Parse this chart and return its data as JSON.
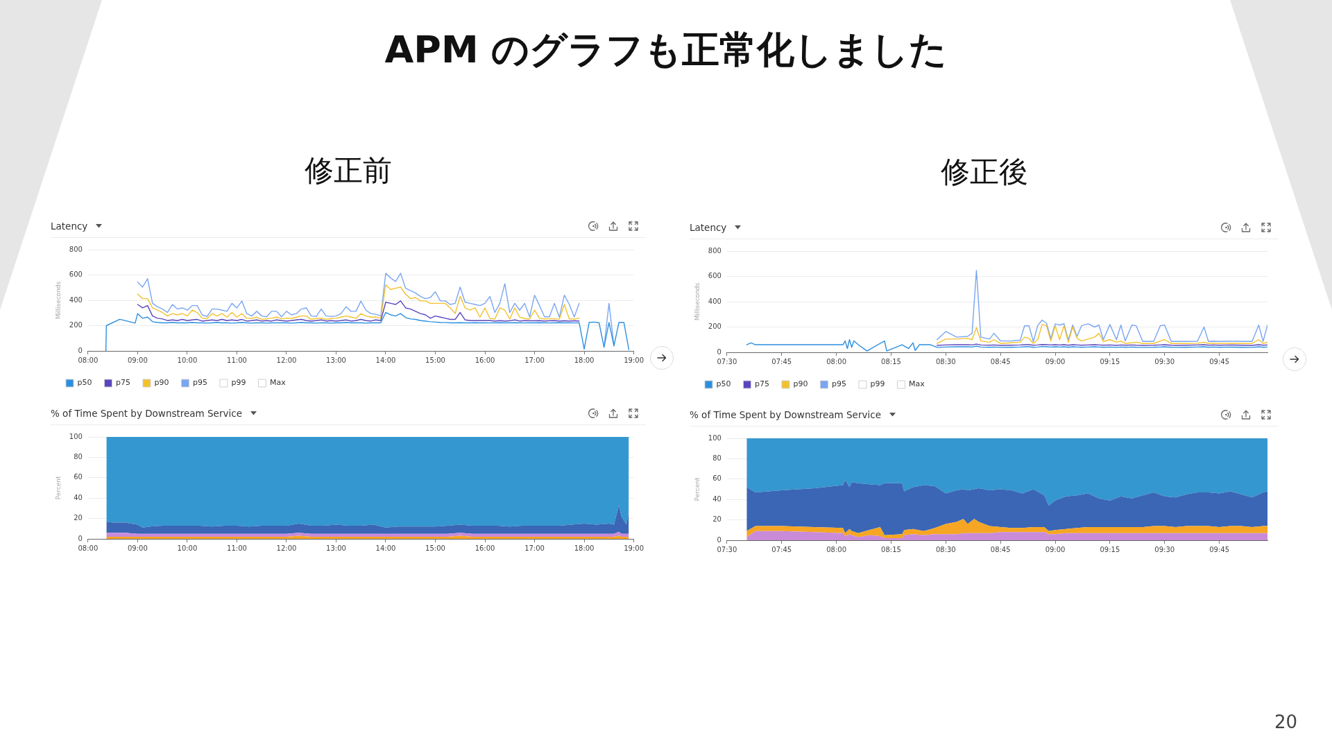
{
  "chart_data": [
    {
      "type": "line",
      "title": "Latency",
      "subtitle": "修正前",
      "ylabel": "Milliseconds",
      "annotations": [
        "APM のグラフも正常化しました"
      ],
      "x": [
        8.36,
        8.37,
        8.64,
        8.95,
        9,
        9.1,
        9.2,
        9.3,
        9.4,
        9.5,
        9.6,
        9.7,
        9.8,
        9.9,
        10,
        10.1,
        10.2,
        10.3,
        10.4,
        10.5,
        10.6,
        10.7,
        10.8,
        10.9,
        11,
        11.1,
        11.2,
        11.3,
        11.4,
        11.5,
        11.6,
        11.7,
        11.8,
        11.9,
        12,
        12.1,
        12.2,
        12.3,
        12.4,
        12.5,
        12.6,
        12.7,
        12.8,
        12.9,
        13,
        13.1,
        13.2,
        13.3,
        13.4,
        13.5,
        13.6,
        13.7,
        13.8,
        13.9,
        14,
        14.1,
        14.2,
        14.3,
        14.4,
        14.5,
        14.6,
        14.7,
        14.8,
        14.9,
        15,
        15.1,
        15.2,
        15.3,
        15.4,
        15.5,
        15.6,
        15.7,
        15.8,
        15.9,
        16,
        16.1,
        16.2,
        16.3,
        16.4,
        16.5,
        16.6,
        16.7,
        16.8,
        16.9,
        17,
        17.1,
        17.2,
        17.3,
        17.4,
        17.5,
        17.6,
        17.7,
        17.8,
        17.9,
        18,
        18.1,
        18.2,
        18.3,
        18.4,
        18.5,
        18.6,
        18.7,
        18.8,
        18.9
      ],
      "series": [
        {
          "name": "p50",
          "color": "#2b8fe0",
          "values": [
            0,
            200,
            250,
            220,
            295,
            258,
            267,
            231,
            225,
            222,
            222,
            225,
            222,
            222,
            222,
            225,
            222,
            222,
            220,
            222,
            225,
            222,
            222,
            220,
            222,
            225,
            222,
            220,
            222,
            222,
            220,
            222,
            222,
            222,
            222,
            220,
            222,
            225,
            222,
            222,
            220,
            222,
            222,
            220,
            222,
            222,
            225,
            222,
            222,
            222,
            220,
            222,
            222,
            222,
            304,
            285,
            276,
            295,
            264,
            253,
            249,
            240,
            236,
            231,
            228,
            225,
            224,
            222,
            222,
            223,
            222,
            222,
            223,
            222,
            222,
            221,
            222,
            223,
            222,
            222,
            223,
            222,
            221,
            222,
            222,
            223,
            222,
            221,
            222,
            223,
            222,
            222,
            221,
            222,
            15,
            225,
            228,
            222,
            30,
            225,
            40,
            225,
            225,
            10
          ]
        },
        {
          "name": "p75",
          "color": "#5b45bd",
          "values": [
            null,
            null,
            null,
            null,
            367,
            340,
            358,
            276,
            258,
            253,
            240,
            245,
            240,
            249,
            240,
            245,
            249,
            236,
            240,
            245,
            240,
            249,
            240,
            245,
            240,
            249,
            236,
            240,
            245,
            236,
            240,
            236,
            245,
            240,
            236,
            240,
            245,
            249,
            240,
            236,
            240,
            245,
            236,
            240,
            236,
            240,
            245,
            236,
            240,
            249,
            240,
            236,
            245,
            240,
            385,
            376,
            367,
            395,
            340,
            331,
            313,
            295,
            285,
            258,
            276,
            267,
            258,
            249,
            249,
            304,
            245,
            240,
            240,
            240,
            240,
            240,
            236,
            240,
            236,
            238,
            245,
            236,
            240,
            238,
            238,
            240,
            236,
            238,
            240,
            236,
            238,
            236,
            238,
            236,
            null,
            null,
            null,
            null,
            null,
            null,
            null,
            null,
            null,
            null
          ]
        },
        {
          "name": "p90",
          "color": "#f2c12e",
          "values": [
            null,
            null,
            null,
            null,
            449,
            413,
            413,
            340,
            322,
            304,
            276,
            295,
            285,
            295,
            276,
            322,
            304,
            258,
            255,
            295,
            276,
            295,
            267,
            304,
            267,
            295,
            258,
            256,
            267,
            249,
            254,
            258,
            267,
            254,
            258,
            256,
            267,
            276,
            276,
            249,
            256,
            258,
            249,
            256,
            258,
            267,
            276,
            267,
            258,
            295,
            276,
            267,
            267,
            258,
            522,
            485,
            495,
            504,
            449,
            413,
            422,
            395,
            395,
            376,
            376,
            376,
            376,
            340,
            295,
            431,
            340,
            322,
            340,
            267,
            340,
            256,
            252,
            340,
            322,
            252,
            340,
            267,
            256,
            252,
            322,
            258,
            252,
            254,
            254,
            250,
            367,
            252,
            252,
            258,
            null,
            null,
            null,
            null,
            null,
            null,
            null,
            null,
            null,
            null
          ]
        },
        {
          "name": "p95",
          "color": "#79a5f1",
          "values": [
            null,
            null,
            null,
            null,
            544,
            504,
            571,
            376,
            349,
            331,
            304,
            367,
            331,
            340,
            322,
            358,
            358,
            285,
            272,
            331,
            331,
            322,
            313,
            376,
            340,
            394,
            295,
            276,
            313,
            276,
            270,
            313,
            313,
            270,
            313,
            285,
            295,
            331,
            340,
            276,
            272,
            331,
            276,
            272,
            276,
            295,
            349,
            313,
            313,
            394,
            322,
            295,
            290,
            276,
            613,
            576,
            549,
            613,
            495,
            476,
            458,
            431,
            413,
            422,
            467,
            395,
            395,
            367,
            376,
            504,
            385,
            376,
            367,
            358,
            376,
            431,
            304,
            376,
            531,
            304,
            376,
            322,
            376,
            268,
            440,
            358,
            270,
            270,
            376,
            266,
            440,
            367,
            268,
            376,
            null,
            null,
            null,
            null,
            30,
            376,
            40,
            null,
            null,
            null
          ]
        },
        {
          "name": "p99",
          "color": "#ffffff",
          "values": [
            null,
            null,
            null,
            null,
            null,
            null,
            null,
            null,
            null,
            null,
            null,
            null,
            null,
            null,
            null,
            null,
            null,
            null,
            null,
            null,
            null,
            null,
            null,
            null,
            null,
            null,
            null,
            null,
            null,
            null,
            null,
            null,
            null,
            null,
            null,
            null,
            null,
            null,
            null,
            null,
            null,
            null,
            null,
            null,
            null,
            null,
            null,
            null,
            null,
            null,
            null,
            null,
            null,
            null,
            null,
            null,
            null,
            null,
            null,
            null,
            null,
            null,
            null,
            null,
            null,
            null,
            null,
            null,
            null,
            null,
            null,
            null,
            null,
            null,
            null,
            null,
            null,
            null,
            null,
            null,
            null,
            null,
            null,
            null,
            null,
            null,
            null,
            null,
            null,
            null,
            null,
            null,
            null,
            null,
            null,
            null,
            null,
            null,
            null,
            null,
            null,
            null,
            null,
            null
          ]
        },
        {
          "name": "Max",
          "color": "#ffffff",
          "values": [
            null,
            null,
            null,
            null,
            null,
            null,
            null,
            null,
            null,
            null,
            null,
            null,
            null,
            null,
            null,
            null,
            null,
            null,
            null,
            null,
            null,
            null,
            null,
            null,
            null,
            null,
            null,
            null,
            null,
            null,
            null,
            null,
            null,
            null,
            null,
            null,
            null,
            null,
            null,
            null,
            null,
            null,
            null,
            null,
            null,
            null,
            null,
            null,
            null,
            null,
            null,
            null,
            null,
            null,
            null,
            null,
            null,
            null,
            null,
            null,
            null,
            null,
            null,
            null,
            null,
            null,
            null,
            null,
            null,
            null,
            null,
            null,
            null,
            null,
            null,
            null,
            null,
            null,
            null,
            null,
            null,
            null,
            null,
            null,
            null,
            null,
            null,
            null,
            null,
            null,
            null,
            null,
            null,
            null,
            null,
            null,
            null,
            null,
            null,
            null,
            null,
            null,
            null,
            null
          ]
        }
      ],
      "xlim": [
        8,
        19
      ],
      "xticks": [
        {
          "value": 8,
          "label": "08:00"
        },
        {
          "value": 9,
          "label": "09:00"
        },
        {
          "value": 10,
          "label": "10:00"
        },
        {
          "value": 11,
          "label": "11:00"
        },
        {
          "value": 12,
          "label": "12:00"
        },
        {
          "value": 13,
          "label": "13:00"
        },
        {
          "value": 14,
          "label": "14:00"
        },
        {
          "value": 15,
          "label": "15:00"
        },
        {
          "value": 16,
          "label": "16:00"
        },
        {
          "value": 17,
          "label": "17:00"
        },
        {
          "value": 18,
          "label": "18:00"
        },
        {
          "value": 19,
          "label": "19:00"
        }
      ],
      "ylim": [
        0,
        800
      ],
      "yticks": [
        0,
        200,
        400,
        600,
        800
      ],
      "grid": "y",
      "legend": "bottom left"
    },
    {
      "type": "line",
      "title": "Latency",
      "subtitle": "修正後",
      "ylabel": "Milliseconds",
      "x": [
        7.59,
        7.61,
        7.63,
        8.03,
        8.04,
        8.05,
        8.06,
        8.07,
        8.08,
        8.1,
        8.14,
        8.22,
        8.23,
        8.3,
        8.33,
        8.35,
        8.36,
        8.38,
        8.41,
        8.43,
        8.46,
        8.5,
        8.55,
        8.6,
        8.62,
        8.64,
        8.66,
        8.7,
        8.72,
        8.75,
        8.8,
        8.84,
        8.86,
        8.88,
        8.9,
        8.92,
        8.94,
        8.96,
        8.98,
        9,
        9.02,
        9.04,
        9.06,
        9.08,
        9.1,
        9.12,
        9.15,
        9.18,
        9.2,
        9.22,
        9.25,
        9.28,
        9.3,
        9.32,
        9.35,
        9.37,
        9.4,
        9.45,
        9.48,
        9.5,
        9.53,
        9.55,
        9.6,
        9.65,
        9.68,
        9.7,
        9.72,
        9.75,
        9.8,
        9.85,
        9.9,
        9.93,
        9.95,
        9.97
      ],
      "series": [
        {
          "name": "p50",
          "color": "#2b8fe0",
          "values": [
            60,
            75,
            60,
            60,
            90,
            30,
            100,
            40,
            90,
            60,
            10,
            90,
            10,
            60,
            30,
            75,
            15,
            60,
            60,
            60,
            39,
            42,
            44,
            44,
            42,
            49,
            42,
            40,
            42,
            39,
            40,
            42,
            44,
            44,
            40,
            42,
            46,
            44,
            42,
            44,
            42,
            44,
            40,
            44,
            42,
            40,
            42,
            44,
            42,
            40,
            42,
            39,
            42,
            40,
            42,
            40,
            39,
            40,
            42,
            44,
            40,
            39,
            40,
            42,
            44,
            40,
            42,
            40,
            42,
            40,
            39,
            44,
            40,
            42
          ]
        },
        {
          "name": "p75",
          "color": "#5b45bd",
          "values": [
            null,
            null,
            null,
            null,
            null,
            null,
            null,
            null,
            null,
            null,
            null,
            null,
            null,
            null,
            null,
            null,
            null,
            null,
            null,
            null,
            55,
            58,
            60,
            60,
            58,
            65,
            58,
            56,
            58,
            55,
            56,
            58,
            60,
            60,
            56,
            58,
            62,
            60,
            58,
            60,
            58,
            60,
            56,
            60,
            58,
            56,
            58,
            60,
            58,
            56,
            58,
            55,
            58,
            56,
            58,
            56,
            55,
            56,
            58,
            60,
            56,
            55,
            56,
            58,
            60,
            56,
            58,
            56,
            58,
            56,
            55,
            60,
            56,
            58
          ]
        },
        {
          "name": "p90",
          "color": "#f2c12e",
          "values": [
            null,
            null,
            null,
            null,
            null,
            null,
            null,
            null,
            null,
            null,
            null,
            null,
            null,
            null,
            null,
            null,
            null,
            null,
            null,
            null,
            70,
            105,
            105,
            110,
            100,
            195,
            90,
            80,
            100,
            70,
            75,
            80,
            120,
            110,
            70,
            100,
            220,
            210,
            90,
            210,
            100,
            210,
            80,
            200,
            110,
            90,
            105,
            120,
            150,
            85,
            100,
            80,
            90,
            70,
            75,
            80,
            70,
            70,
            90,
            100,
            70,
            70,
            70,
            72,
            80,
            70,
            72,
            70,
            72,
            70,
            70,
            100,
            70,
            80
          ]
        },
        {
          "name": "p95",
          "color": "#79a5f1",
          "values": [
            null,
            null,
            null,
            null,
            null,
            null,
            null,
            null,
            null,
            null,
            null,
            null,
            null,
            null,
            null,
            null,
            null,
            null,
            null,
            null,
            100,
            165,
            120,
            126,
            150,
            647,
            120,
            105,
            150,
            90,
            90,
            96,
            210,
            210,
            85,
            210,
            255,
            230,
            108,
            225,
            215,
            226,
            96,
            215,
            126,
            210,
            225,
            200,
            215,
            100,
            220,
            100,
            215,
            90,
            215,
            210,
            86,
            86,
            210,
            215,
            86,
            86,
            86,
            88,
            200,
            86,
            88,
            86,
            88,
            86,
            86,
            215,
            86,
            215
          ]
        },
        {
          "name": "p99",
          "color": "#ffffff",
          "values": [
            null,
            null,
            null,
            null,
            null,
            null,
            null,
            null,
            null,
            null,
            null,
            null,
            null,
            null,
            null,
            null,
            null,
            null,
            null,
            null,
            null,
            null,
            null,
            null,
            null,
            null,
            null,
            null,
            null,
            null,
            null,
            null,
            null,
            null,
            null,
            null,
            null,
            null,
            null,
            null,
            null,
            null,
            null,
            null,
            null,
            null,
            null,
            null,
            null,
            null,
            null,
            null,
            null,
            null,
            null,
            null,
            null,
            null,
            null,
            null,
            null,
            null,
            null,
            null,
            null,
            null,
            null,
            null,
            null,
            null,
            null,
            null,
            null,
            null
          ]
        },
        {
          "name": "Max",
          "color": "#ffffff",
          "values": [
            null,
            null,
            null,
            null,
            null,
            null,
            null,
            null,
            null,
            null,
            null,
            null,
            null,
            null,
            null,
            null,
            null,
            null,
            null,
            null,
            null,
            null,
            null,
            null,
            null,
            null,
            null,
            null,
            null,
            null,
            null,
            null,
            null,
            null,
            null,
            null,
            null,
            null,
            null,
            null,
            null,
            null,
            null,
            null,
            null,
            null,
            null,
            null,
            null,
            null,
            null,
            null,
            null,
            null,
            null,
            null,
            null,
            null,
            null,
            null,
            null,
            null,
            null,
            null,
            null,
            null,
            null,
            null,
            null,
            null,
            null,
            null,
            null,
            null
          ]
        }
      ],
      "xlim": [
        7.5,
        9.97
      ],
      "xticks": [
        {
          "value": 7.5,
          "label": "07:30"
        },
        {
          "value": 7.75,
          "label": "07:45"
        },
        {
          "value": 8,
          "label": "08:00"
        },
        {
          "value": 8.25,
          "label": "08:15"
        },
        {
          "value": 8.5,
          "label": "08:30"
        },
        {
          "value": 8.75,
          "label": "08:45"
        },
        {
          "value": 9,
          "label": "09:00"
        },
        {
          "value": 9.25,
          "label": "09:15"
        },
        {
          "value": 9.5,
          "label": "09:30"
        },
        {
          "value": 9.75,
          "label": "09:45"
        }
      ],
      "ylim": [
        0,
        800
      ],
      "yticks": [
        0,
        200,
        400,
        600,
        800
      ],
      "grid": "y",
      "legend": "bottom left"
    },
    {
      "type": "area",
      "stacked": true,
      "title": "% of Time Spent by Downstream Service",
      "ylabel": "Percent",
      "x": [
        8.37,
        8.5,
        8.75,
        9,
        9.1,
        9.25,
        9.5,
        9.75,
        10,
        10.25,
        10.5,
        10.75,
        11,
        11.25,
        11.5,
        11.75,
        12,
        12.25,
        12.5,
        12.75,
        13,
        13.25,
        13.5,
        13.75,
        14,
        14.25,
        14.5,
        14.75,
        15,
        15.25,
        15.5,
        15.75,
        16,
        16.25,
        16.5,
        16.75,
        17,
        17.25,
        17.5,
        17.75,
        18,
        18.25,
        18.5,
        18.6,
        18.7,
        18.75,
        18.8,
        18.85,
        18.9
      ],
      "series": [
        {
          "color": "#f6a623",
          "values": [
            2,
            2,
            2,
            2,
            2,
            2,
            2,
            2,
            2,
            2,
            2,
            2,
            2,
            2,
            2,
            2,
            2,
            3,
            2,
            2,
            2,
            2,
            2,
            2,
            2,
            2,
            2,
            2,
            2,
            2,
            3,
            2,
            2,
            2,
            2,
            2,
            2,
            2,
            2,
            2,
            2,
            2,
            2,
            2,
            3,
            2,
            2,
            2,
            2
          ]
        },
        {
          "color": "#c98bd8",
          "values": [
            4,
            4,
            4,
            3,
            3,
            3,
            3,
            3,
            3,
            3,
            3,
            3,
            3,
            3,
            3,
            3,
            3,
            3,
            3,
            3,
            3,
            3,
            3,
            3,
            3,
            3,
            3,
            3,
            3,
            3,
            3,
            3,
            3,
            3,
            3,
            3,
            3,
            3,
            3,
            3,
            3,
            3,
            3,
            3,
            4,
            3,
            3,
            3,
            3
          ]
        },
        {
          "color": "#3a66b5",
          "values": [
            11,
            10,
            10,
            9,
            6,
            7,
            8,
            8,
            8,
            8,
            7,
            8,
            8,
            7,
            8,
            8,
            8,
            9,
            8,
            8,
            9,
            8,
            8,
            9,
            6,
            7,
            7,
            7,
            7,
            8,
            8,
            8,
            8,
            8,
            7,
            8,
            8,
            8,
            8,
            9,
            10,
            9,
            10,
            9,
            26,
            17,
            13,
            9,
            22
          ]
        },
        {
          "color": "#3597cf",
          "values": [
            83,
            84,
            84,
            86,
            89,
            88,
            87,
            87,
            87,
            87,
            88,
            87,
            87,
            88,
            87,
            87,
            87,
            85,
            87,
            87,
            86,
            87,
            87,
            86,
            89,
            88,
            88,
            88,
            88,
            87,
            86,
            87,
            87,
            87,
            88,
            87,
            87,
            87,
            87,
            86,
            85,
            86,
            85,
            86,
            67,
            78,
            82,
            86,
            73
          ]
        }
      ],
      "xlim": [
        8,
        19
      ],
      "xticks": [
        {
          "value": 8,
          "label": "08:00"
        },
        {
          "value": 9,
          "label": "09:00"
        },
        {
          "value": 10,
          "label": "10:00"
        },
        {
          "value": 11,
          "label": "11:00"
        },
        {
          "value": 12,
          "label": "12:00"
        },
        {
          "value": 13,
          "label": "13:00"
        },
        {
          "value": 14,
          "label": "14:00"
        },
        {
          "value": 15,
          "label": "15:00"
        },
        {
          "value": 16,
          "label": "16:00"
        },
        {
          "value": 17,
          "label": "17:00"
        },
        {
          "value": 18,
          "label": "18:00"
        },
        {
          "value": 19,
          "label": "19:00"
        }
      ],
      "ylim": [
        0,
        100
      ],
      "yticks": [
        0,
        20,
        40,
        60,
        80,
        100
      ],
      "grid": "y"
    },
    {
      "type": "area",
      "stacked": true,
      "title": "% of Time Spent by Downstream Service",
      "ylabel": "Percent",
      "annotations": [
        "20"
      ],
      "x": [
        7.59,
        7.63,
        7.75,
        7.9,
        8.03,
        8.04,
        8.06,
        8.07,
        8.1,
        8.15,
        8.2,
        8.22,
        8.3,
        8.31,
        8.35,
        8.4,
        8.45,
        8.5,
        8.55,
        8.58,
        8.6,
        8.63,
        8.65,
        8.7,
        8.75,
        8.8,
        8.85,
        8.9,
        8.95,
        8.97,
        9,
        9.05,
        9.1,
        9.15,
        9.2,
        9.25,
        9.3,
        9.35,
        9.4,
        9.45,
        9.5,
        9.55,
        9.6,
        9.65,
        9.7,
        9.75,
        9.8,
        9.85,
        9.9,
        9.95,
        9.97
      ],
      "series": [
        {
          "color": "#c98bd8",
          "values": [
            3,
            9,
            9,
            8,
            7,
            4,
            6,
            5,
            3,
            5,
            4,
            2,
            2,
            5,
            6,
            5,
            6,
            6,
            6,
            7,
            7,
            7,
            7,
            7,
            8,
            8,
            8,
            8,
            8,
            6,
            6,
            7,
            7,
            7,
            7,
            7,
            7,
            7,
            7,
            7,
            7,
            7,
            7,
            7,
            7,
            7,
            7,
            7,
            7,
            7,
            7
          ]
        },
        {
          "color": "#f6a623",
          "values": [
            6,
            5,
            5,
            5,
            5,
            3,
            5,
            4,
            4,
            5,
            9,
            3,
            4,
            5,
            5,
            4,
            6,
            10,
            12,
            14,
            9,
            14,
            11,
            7,
            5,
            4,
            4,
            5,
            5,
            3,
            4,
            4,
            5,
            6,
            6,
            6,
            6,
            6,
            6,
            7,
            7,
            6,
            7,
            7,
            7,
            6,
            7,
            7,
            6,
            7,
            7
          ]
        },
        {
          "color": "#3a66b5",
          "values": [
            43,
            33,
            35,
            38,
            42,
            52,
            41,
            48,
            49,
            45,
            41,
            51,
            50,
            38,
            41,
            45,
            41,
            30,
            31,
            29,
            33,
            29,
            33,
            35,
            37,
            37,
            34,
            37,
            31,
            25,
            29,
            32,
            32,
            33,
            28,
            26,
            30,
            28,
            31,
            33,
            29,
            29,
            31,
            33,
            33,
            33,
            34,
            31,
            29,
            33,
            34
          ]
        },
        {
          "color": "#3597cf",
          "values": [
            48,
            53,
            51,
            49,
            46,
            41,
            48,
            43,
            44,
            45,
            46,
            44,
            44,
            52,
            48,
            46,
            47,
            54,
            51,
            50,
            51,
            50,
            49,
            51,
            50,
            51,
            54,
            50,
            56,
            66,
            61,
            57,
            56,
            54,
            59,
            61,
            57,
            59,
            56,
            53,
            57,
            58,
            55,
            53,
            53,
            54,
            52,
            55,
            58,
            53,
            52
          ]
        }
      ],
      "xlim": [
        7.5,
        9.97
      ],
      "xticks": [
        {
          "value": 7.5,
          "label": "07:30"
        },
        {
          "value": 7.75,
          "label": "07:45"
        },
        {
          "value": 8,
          "label": "08:00"
        },
        {
          "value": 8.25,
          "label": "08:15"
        },
        {
          "value": 8.5,
          "label": "08:30"
        },
        {
          "value": 8.75,
          "label": "08:45"
        },
        {
          "value": 9,
          "label": "09:00"
        },
        {
          "value": 9.25,
          "label": "09:15"
        },
        {
          "value": 9.5,
          "label": "09:30"
        },
        {
          "value": 9.75,
          "label": "09:45"
        }
      ],
      "ylim": [
        0,
        100
      ],
      "yticks": [
        0,
        20,
        40,
        60,
        80,
        100
      ],
      "grid": "y"
    }
  ]
}
